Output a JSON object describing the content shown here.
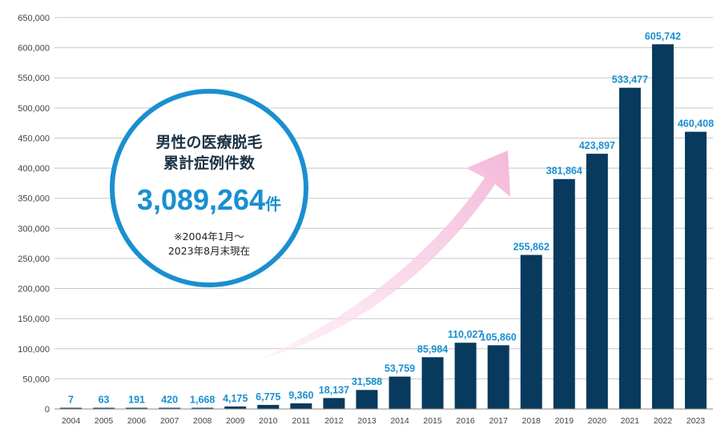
{
  "chart_data": {
    "type": "bar",
    "categories": [
      "2004",
      "2005",
      "2006",
      "2007",
      "2008",
      "2009",
      "2010",
      "2011",
      "2012",
      "2013",
      "2014",
      "2015",
      "2016",
      "2017",
      "2018",
      "2019",
      "2020",
      "2021",
      "2022",
      "2023"
    ],
    "values": [
      7,
      63,
      191,
      420,
      1668,
      4175,
      6775,
      9360,
      18137,
      31588,
      53759,
      85984,
      110027,
      105860,
      255862,
      381864,
      423897,
      533477,
      605742,
      460408
    ],
    "value_labels": [
      "7",
      "63",
      "191",
      "420",
      "1,668",
      "4,175",
      "6,775",
      "9,360",
      "18,137",
      "31,588",
      "53,759",
      "85,984",
      "110,027",
      "105,860",
      "255,862",
      "381,864",
      "423,897",
      "533,477",
      "605,742",
      "460,408"
    ],
    "ylim": [
      0,
      650000
    ],
    "yticks": [
      0,
      50000,
      100000,
      150000,
      200000,
      250000,
      300000,
      350000,
      400000,
      450000,
      500000,
      550000,
      600000,
      650000
    ],
    "ytick_labels": [
      "0",
      "50,000",
      "100,000",
      "150,000",
      "200,000",
      "250,000",
      "300,000",
      "350,000",
      "400,000",
      "450,000",
      "500,000",
      "550,000",
      "600,000",
      "650,000"
    ],
    "grid": true,
    "bar_color": "#083a5e",
    "label_color": "#1a8fd0",
    "grid_color": "#c8c8c8"
  },
  "callout": {
    "title_line1": "男性の医療脱毛",
    "title_line2": "累計症例件数",
    "total": "3,089,264",
    "unit": "件",
    "note_line1": "※2004年1月～",
    "note_line2": "2023年8月末現在",
    "ring_color": "#1a8fd0"
  },
  "arrow": {
    "color": "#f7c6e0"
  }
}
